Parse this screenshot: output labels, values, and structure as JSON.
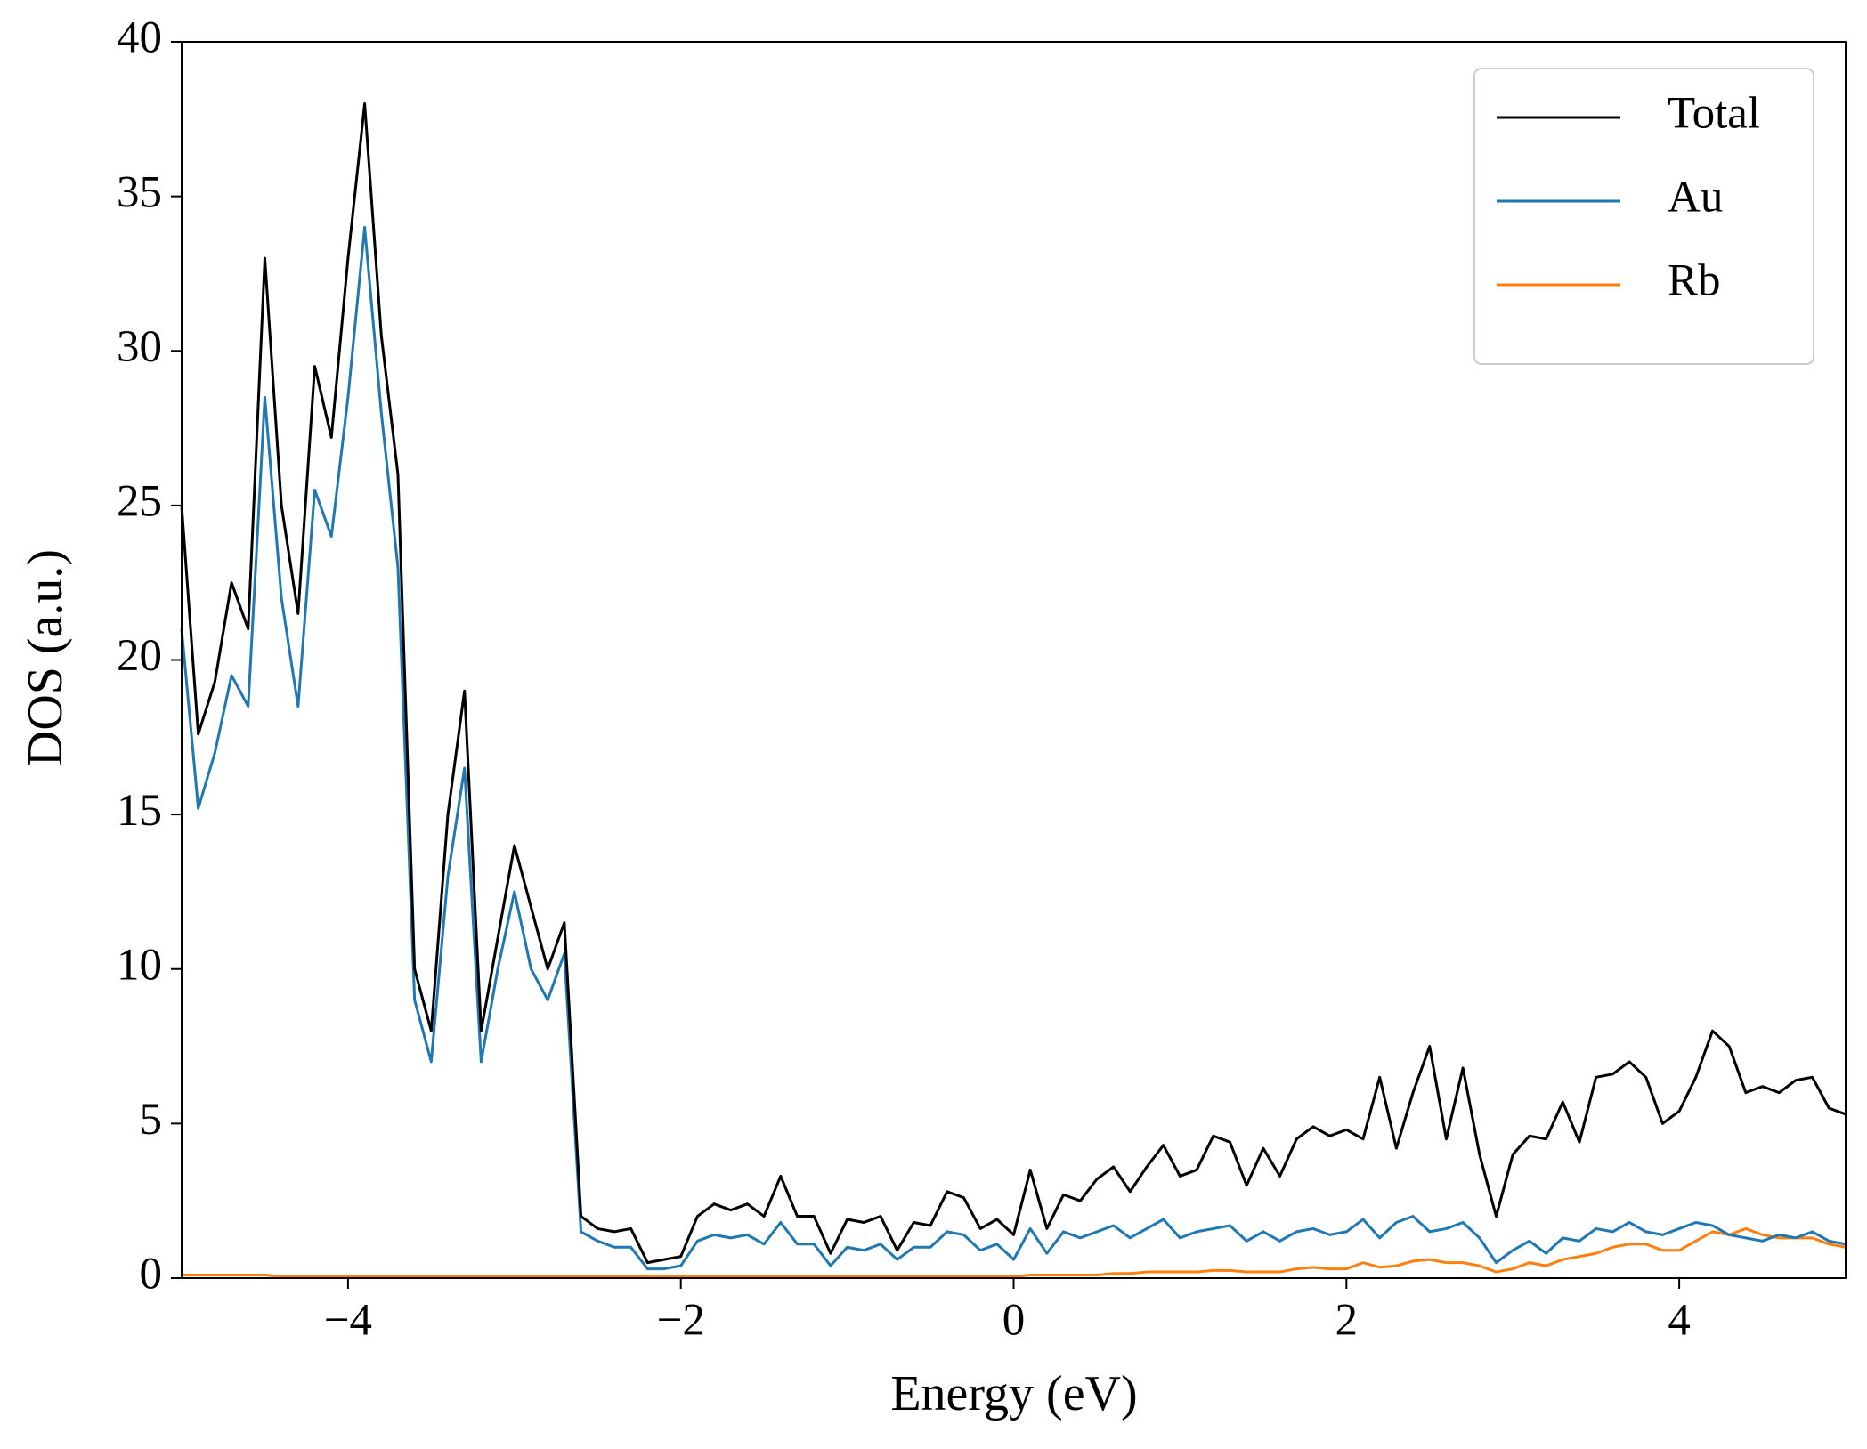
{
  "chart_data": {
    "type": "line",
    "xlabel": "Energy (eV)",
    "ylabel": "DOS (a.u.)",
    "x": [
      -5.0,
      -4.9,
      -4.8,
      -4.7,
      -4.6,
      -4.5,
      -4.4,
      -4.3,
      -4.2,
      -4.1,
      -4.0,
      -3.9,
      -3.8,
      -3.7,
      -3.6,
      -3.5,
      -3.4,
      -3.3,
      -3.2,
      -3.1,
      -3.0,
      -2.9,
      -2.8,
      -2.7,
      -2.6,
      -2.5,
      -2.4,
      -2.3,
      -2.2,
      -2.1,
      -2.0,
      -1.9,
      -1.8,
      -1.7,
      -1.6,
      -1.5,
      -1.4,
      -1.3,
      -1.2,
      -1.1,
      -1.0,
      -0.9,
      -0.8,
      -0.7,
      -0.6,
      -0.5,
      -0.4,
      -0.3,
      -0.2,
      -0.1,
      0.0,
      0.1,
      0.2,
      0.3,
      0.4,
      0.5,
      0.6,
      0.7,
      0.8,
      0.9,
      1.0,
      1.1,
      1.2,
      1.3,
      1.4,
      1.5,
      1.6,
      1.7,
      1.8,
      1.9,
      2.0,
      2.1,
      2.2,
      2.3,
      2.4,
      2.5,
      2.6,
      2.7,
      2.8,
      2.9,
      3.0,
      3.1,
      3.2,
      3.3,
      3.4,
      3.5,
      3.6,
      3.7,
      3.8,
      3.9,
      4.0,
      4.1,
      4.2,
      4.3,
      4.4,
      4.5,
      4.6,
      4.7,
      4.8,
      4.9,
      5.0
    ],
    "series": [
      {
        "name": "Total",
        "color": "#000000",
        "values": [
          25,
          17.6,
          19.3,
          22.5,
          21,
          33,
          25,
          21.5,
          29.5,
          27.2,
          33,
          38,
          30.5,
          26,
          10,
          8,
          15,
          19,
          8,
          11,
          14,
          12,
          10,
          11.5,
          2,
          1.6,
          1.5,
          1.6,
          0.5,
          0.6,
          0.7,
          2.0,
          2.4,
          2.2,
          2.4,
          2.0,
          3.3,
          2.0,
          2.0,
          0.8,
          1.9,
          1.8,
          2.0,
          0.9,
          1.8,
          1.7,
          2.8,
          2.6,
          1.6,
          1.9,
          1.4,
          3.5,
          1.6,
          2.7,
          2.5,
          3.2,
          3.6,
          2.8,
          3.6,
          4.3,
          3.3,
          3.5,
          4.6,
          4.4,
          3.0,
          4.2,
          3.3,
          4.5,
          4.9,
          4.6,
          4.8,
          4.5,
          6.5,
          4.2,
          6.0,
          7.5,
          4.5,
          6.8,
          4.0,
          2.0,
          4.0,
          4.6,
          4.5,
          5.7,
          4.4,
          6.5,
          6.6,
          7.0,
          6.5,
          5.0,
          5.4,
          6.5,
          8.0,
          7.5,
          6.0,
          6.2,
          6.0,
          6.4,
          6.5,
          5.5,
          5.3
        ]
      },
      {
        "name": "Au",
        "color": "#1f77b4",
        "values": [
          21,
          15.2,
          17,
          19.5,
          18.5,
          28.5,
          22,
          18.5,
          25.5,
          24,
          28.5,
          34,
          28,
          23,
          9,
          7,
          13,
          16.5,
          7,
          10,
          12.5,
          10,
          9,
          10.5,
          1.5,
          1.2,
          1.0,
          1.0,
          0.3,
          0.3,
          0.4,
          1.2,
          1.4,
          1.3,
          1.4,
          1.1,
          1.8,
          1.1,
          1.1,
          0.4,
          1.0,
          0.9,
          1.1,
          0.6,
          1.0,
          1.0,
          1.5,
          1.4,
          0.9,
          1.1,
          0.6,
          1.6,
          0.8,
          1.5,
          1.3,
          1.5,
          1.7,
          1.3,
          1.6,
          1.9,
          1.3,
          1.5,
          1.6,
          1.7,
          1.2,
          1.5,
          1.2,
          1.5,
          1.6,
          1.4,
          1.5,
          1.9,
          1.3,
          1.8,
          2.0,
          1.5,
          1.6,
          1.8,
          1.3,
          0.5,
          0.9,
          1.2,
          0.8,
          1.3,
          1.2,
          1.6,
          1.5,
          1.8,
          1.5,
          1.4,
          1.6,
          1.8,
          1.7,
          1.4,
          1.3,
          1.2,
          1.4,
          1.3,
          1.5,
          1.2,
          1.1
        ]
      },
      {
        "name": "Rb",
        "color": "#ff7f0e",
        "values": [
          0.1,
          0.1,
          0.1,
          0.1,
          0.1,
          0.1,
          0.05,
          0.05,
          0.05,
          0.05,
          0.05,
          0.05,
          0.05,
          0.05,
          0.05,
          0.05,
          0.05,
          0.05,
          0.05,
          0.05,
          0.05,
          0.05,
          0.05,
          0.05,
          0.05,
          0.05,
          0.05,
          0.05,
          0.05,
          0.05,
          0.05,
          0.05,
          0.05,
          0.05,
          0.05,
          0.05,
          0.05,
          0.05,
          0.05,
          0.05,
          0.05,
          0.05,
          0.05,
          0.05,
          0.05,
          0.05,
          0.05,
          0.05,
          0.05,
          0.05,
          0.05,
          0.1,
          0.1,
          0.1,
          0.1,
          0.1,
          0.15,
          0.15,
          0.2,
          0.2,
          0.2,
          0.2,
          0.25,
          0.25,
          0.2,
          0.2,
          0.2,
          0.3,
          0.35,
          0.3,
          0.3,
          0.5,
          0.35,
          0.4,
          0.55,
          0.6,
          0.5,
          0.5,
          0.4,
          0.2,
          0.3,
          0.5,
          0.4,
          0.6,
          0.7,
          0.8,
          1.0,
          1.1,
          1.1,
          0.9,
          0.9,
          1.2,
          1.5,
          1.4,
          1.6,
          1.4,
          1.3,
          1.3,
          1.3,
          1.1,
          1.0
        ]
      }
    ],
    "xlim": [
      -5,
      5
    ],
    "ylim": [
      0,
      40
    ],
    "xticks": [
      {
        "value": -4,
        "label": "−4"
      },
      {
        "value": -2,
        "label": "−2"
      },
      0,
      2,
      4
    ],
    "yticks": [
      0,
      5,
      10,
      15,
      20,
      25,
      30,
      35,
      40
    ],
    "grid": false,
    "legend": "upper right"
  }
}
